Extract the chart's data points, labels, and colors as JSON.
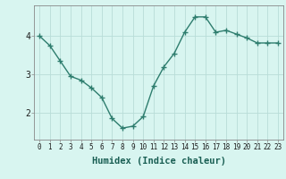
{
  "x": [
    0,
    1,
    2,
    3,
    4,
    5,
    6,
    7,
    8,
    9,
    10,
    11,
    12,
    13,
    14,
    15,
    16,
    17,
    18,
    19,
    20,
    21,
    22,
    23
  ],
  "y": [
    4.0,
    3.75,
    3.35,
    2.95,
    2.85,
    2.65,
    2.4,
    1.85,
    1.6,
    1.65,
    1.9,
    2.7,
    3.2,
    3.55,
    4.1,
    4.5,
    4.5,
    4.1,
    4.15,
    4.05,
    3.95,
    3.82,
    3.82,
    3.82
  ],
  "line_color": "#2e7d6e",
  "marker": "+",
  "markersize": 4,
  "linewidth": 1.0,
  "bg_color": "#d8f5f0",
  "grid_color": "#b8ddd8",
  "xlabel": "Humidex (Indice chaleur)",
  "xlabel_fontsize": 7.5,
  "ylabel_ticks": [
    2,
    3,
    4
  ],
  "ylim": [
    1.3,
    4.8
  ],
  "xlim": [
    -0.5,
    23.5
  ],
  "xtick_fontsize": 5.5,
  "ytick_fontsize": 7
}
